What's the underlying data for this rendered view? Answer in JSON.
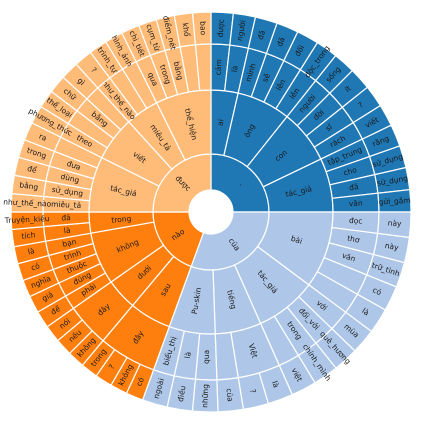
{
  "chart_data": {
    "type": "sunburst",
    "title": "",
    "colors": {
      "blue_dark": "#1f77b4",
      "blue_light": "#aec7e8",
      "orange_dark": "#ff7f0e",
      "orange_light": "#ffbb78"
    },
    "root": {
      "children": [
        {
          "name": ".",
          "colorKey": "blue_dark",
          "children": [
            {
              "name": "ai",
              "children": [
                {
                  "name": "cảm",
                  "children": [
                    {
                      "name": "được"
                    }
                  ]
                },
                {
                  "name": "là",
                  "children": [
                    {
                      "name": "người"
                    }
                  ]
                }
              ]
            },
            {
              "name": "ông",
              "children": [
                {
                  "name": "mình",
                  "children": [
                    {
                      "name": "đã"
                    }
                  ]
                },
                {
                  "name": "sẽ",
                  "children": [
                    {
                      "name": "đã"
                    }
                  ]
                },
                {
                  "name": "lên",
                  "children": [
                    {
                      "name": "đối"
                    }
                  ]
                },
                {
                  "name": "lên",
                  "children": [
                    {
                      "name": "độc_trong"
                    }
                  ]
                }
              ]
            },
            {
              "name": "con",
              "children": [
                {
                  "name": "người",
                  "children": [
                    {
                      "name": "sống"
                    }
                  ]
                },
                {
                  "name": "đời",
                  "children": [
                    {
                      "name": "ít"
                    }
                  ]
                },
                {
                  "name": "sĩ",
                  "children": [
                    {
                      "name": "?"
                    }
                  ]
                },
                {
                  "name": "rách",
                  "children": [
                    {
                      "name": "viết"
                    }
                  ]
                }
              ]
            },
            {
              "name": "tác_giả",
              "children": [
                {
                  "name": "tập_trung",
                  "children": [
                    {
                      "name": "rằng"
                    }
                  ]
                },
                {
                  "name": "cho",
                  "children": [
                    {
                      "name": "sử_dụng"
                    }
                  ]
                },
                {
                  "name": "đã",
                  "children": [
                    {
                      "name": "sử_dụng"
                    }
                  ]
                },
                {
                  "name": "văn",
                  "children": [
                    {
                      "name": "gửi_gắm"
                    }
                  ]
                }
              ]
            }
          ]
        },
        {
          "name": "của",
          "colorKey": "blue_light",
          "children": [
            {
              "name": "bài",
              "children": [
                {
                  "name": "đọc",
                  "children": [
                    {
                      "name": "này"
                    }
                  ]
                },
                {
                  "name": "thơ",
                  "children": [
                    {
                      "name": "này"
                    }
                  ]
                },
                {
                  "name": "văn",
                  "children": [
                    {
                      "name": "trữ_tình"
                    }
                  ]
                },
                {
                  "name": "",
                  "children": [
                    {
                      "name": "có"
                    }
                  ]
                },
                {
                  "name": "",
                  "children": [
                    {
                      "name": "là"
                    }
                  ]
                }
              ]
            },
            {
              "name": "tác_giả",
              "children": [
                {
                  "name": "với",
                  "children": [
                    {
                      "name": "mùa"
                    }
                  ]
                },
                {
                  "name": "đối_với",
                  "children": [
                    {
                      "name": "quê_hương"
                    }
                  ]
                },
                {
                  "name": "trong",
                  "children": [
                    {
                      "name": "chính_mình"
                    }
                  ]
                },
                {
                  "name": "",
                  "children": [
                    {
                      "name": "việt"
                    }
                  ]
                }
              ]
            },
            {
              "name": "tiếng",
              "children": [
                {
                  "name": "Việt",
                  "children": [
                    {
                      "name": "là"
                    },
                    {
                      "name": "?"
                    }
                  ]
                },
                {
                  "name": "",
                  "children": [
                    {
                      "name": "của"
                    }
                  ]
                }
              ]
            },
            {
              "name": "Pu-skin",
              "children": [
                {
                  "name": "qua",
                  "children": [
                    {
                      "name": "những"
                    }
                  ]
                },
                {
                  "name": "là",
                  "children": [
                    {
                      "name": "điều"
                    }
                  ]
                },
                {
                  "name": "biểu_thị",
                  "children": [
                    {
                      "name": "ngoài"
                    }
                  ]
                }
              ]
            }
          ]
        },
        {
          "name": "nào",
          "colorKey": "orange_dark",
          "children": [
            {
              "name": "sau",
              "children": [
                {
                  "name": "đây",
                  "children": [
                    {
                      "name": "có"
                    },
                    {
                      "name": "không"
                    },
                    {
                      "name": "?"
                    },
                    {
                      "name": "trong"
                    }
                  ]
                }
              ]
            },
            {
              "name": "dưới",
              "children": [
                {
                  "name": "đây",
                  "children": [
                    {
                      "name": "không"
                    },
                    {
                      "name": "nếu"
                    },
                    {
                      "name": "nói"
                    }
                  ]
                }
              ]
            },
            {
              "name": "không",
              "children": [
                {
                  "name": "phải",
                  "children": [
                    {
                      "name": "để"
                    }
                  ]
                },
                {
                  "name": "đúng",
                  "children": [
                    {
                      "name": "giả"
                    }
                  ]
                },
                {
                  "name": "thuộc",
                  "children": [
                    {
                      "name": "nghĩa"
                    }
                  ]
                },
                {
                  "name": "trình",
                  "children": [
                    {
                      "name": "có"
                    }
                  ]
                },
                {
                  "name": "bạn",
                  "children": [
                    {
                      "name": "là"
                    }
                  ]
                }
              ]
            },
            {
              "name": "trong",
              "children": [
                {
                  "name": "là",
                  "children": [
                    {
                      "name": "tích"
                    }
                  ]
                },
                {
                  "name": "đã",
                  "children": [
                    {
                      "name": "Truyện_kiều"
                    }
                  ]
                }
              ]
            }
          ]
        },
        {
          "name": "được",
          "colorKey": "orange_light",
          "children": [
            {
              "name": "tác_giả",
              "children": [
                {
                  "name": "miêu_tả",
                  "children": [
                    {
                      "name": "như_thế_nào"
                    }
                  ]
                },
                {
                  "name": "sử_dụng",
                  "children": [
                    {
                      "name": "bằng"
                    }
                  ]
                },
                {
                  "name": "dùng",
                  "children": [
                    {
                      "name": "để"
                    }
                  ]
                },
                {
                  "name": "đưa",
                  "children": [
                    {
                      "name": "trong"
                    }
                  ]
                },
                {
                  "name": "",
                  "children": [
                    {
                      "name": "ra"
                    }
                  ]
                }
              ]
            },
            {
              "name": "viết",
              "children": [
                {
                  "name": "theo",
                  "children": [
                    {
                      "name": "phương_thức"
                    }
                  ]
                },
                {
                  "name": "",
                  "children": [
                    {
                      "name": "thể_loại"
                    }
                  ]
                },
                {
                  "name": "bằng",
                  "children": [
                    {
                      "name": "chữ"
                    }
                  ]
                },
                {
                  "name": "",
                  "children": [
                    {
                      "name": "gì"
                    }
                  ]
                }
              ]
            },
            {
              "name": "miêu_tả",
              "children": [
                {
                  "name": "như_thế_nào",
                  "children": [
                    {
                      "name": "?"
                    }
                  ]
                },
                {
                  "name": "",
                  "children": [
                    {
                      "name": "trình_tự"
                    }
                  ]
                },
                {
                  "name": "",
                  "children": [
                    {
                      "name": "hình_ảnh"
                    }
                  ]
                }
              ]
            },
            {
              "name": "thể_hiện",
              "children": [
                {
                  "name": "qua",
                  "children": [
                    {
                      "name": "chi_tiết"
                    }
                  ]
                },
                {
                  "name": "trong",
                  "children": [
                    {
                      "name": "cụm_từ"
                    }
                  ]
                },
                {
                  "name": "bằng",
                  "children": [
                    {
                      "name": "điểm_nét"
                    }
                  ]
                },
                {
                  "name": "",
                  "children": [
                    {
                      "name": "khổ"
                    }
                  ]
                },
                {
                  "name": "",
                  "children": [
                    {
                      "name": "bao"
                    }
                  ]
                }
              ]
            }
          ]
        }
      ]
    }
  }
}
